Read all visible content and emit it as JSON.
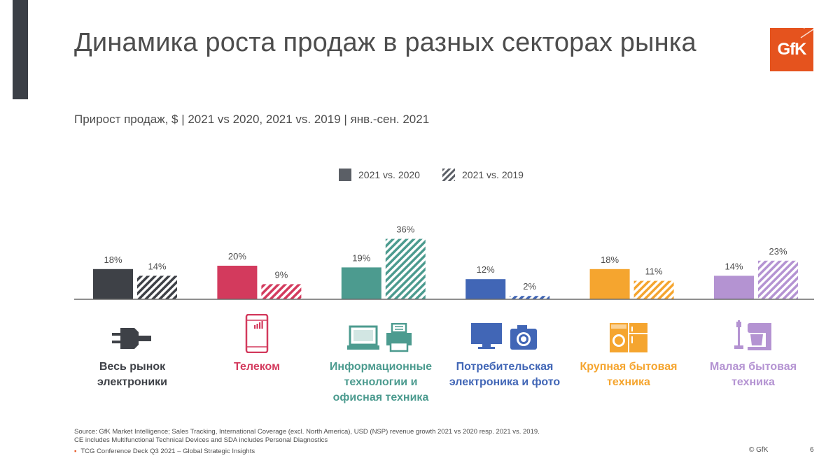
{
  "page": {
    "title": "Динамика роста продаж в разных секторах рынка",
    "subtitle": "Прирост продаж, $  |  2021 vs 2020, 2021 vs. 2019 | янв.-сен. 2021",
    "logo_text": "GfK",
    "source_line1": "Source: GfK Market Intelligence; Sales Tracking, International Coverage (excl. North America), USD (NSP) revenue growth 2021 vs 2020 resp. 2021 vs. 2019.",
    "source_line2": "CE includes Multifunctional Technical Devices and SDA includes Personal Diagnostics",
    "deck_label": "TCG Conference Deck Q3 2021 – Global Strategic Insights",
    "copyright": "© GfK",
    "page_number": "6"
  },
  "colors": {
    "side_bar": "#3b3f46",
    "logo": "#e5531e",
    "axis": "#6a6a6a"
  },
  "chart_data": {
    "type": "bar",
    "title": "",
    "xlabel": "",
    "ylabel": "",
    "ylim": [
      0,
      40
    ],
    "legend": {
      "placement": "top-center"
    },
    "series": [
      {
        "name": "2021 vs. 2020",
        "pattern": "solid",
        "legend_color": "#5b5f66",
        "values": [
          18,
          20,
          19,
          12,
          18,
          14
        ],
        "labels": [
          "18%",
          "20%",
          "19%",
          "12%",
          "18%",
          "14%"
        ]
      },
      {
        "name": "2021 vs. 2019",
        "pattern": "hatched",
        "legend_color": "#5b5f66",
        "values": [
          14,
          9,
          36,
          2,
          11,
          23
        ],
        "labels": [
          "14%",
          "9%",
          "36%",
          "2%",
          "11%",
          "23%"
        ]
      }
    ],
    "categories": [
      {
        "label_lines": [
          "Весь рынок",
          "электроники"
        ],
        "color": "#3e4147",
        "icon": "power-plug-icon"
      },
      {
        "label_lines": [
          "Телеком"
        ],
        "color": "#d33a5d",
        "icon": "smartphone-icon"
      },
      {
        "label_lines": [
          "Информационные",
          "технологии и",
          "офисная техника"
        ],
        "color": "#4c9b8f",
        "icon": "laptop-printer-icon"
      },
      {
        "label_lines": [
          "Потребительская",
          "электроника и фото"
        ],
        "color": "#4166b6",
        "icon": "tv-camera-icon"
      },
      {
        "label_lines": [
          "Крупная бытовая",
          "техника"
        ],
        "color": "#f5a52f",
        "icon": "washer-fridge-icon"
      },
      {
        "label_lines": [
          "Малая бытовая",
          "техника"
        ],
        "color": "#b493d2",
        "icon": "mixer-vacuum-icon"
      }
    ]
  }
}
